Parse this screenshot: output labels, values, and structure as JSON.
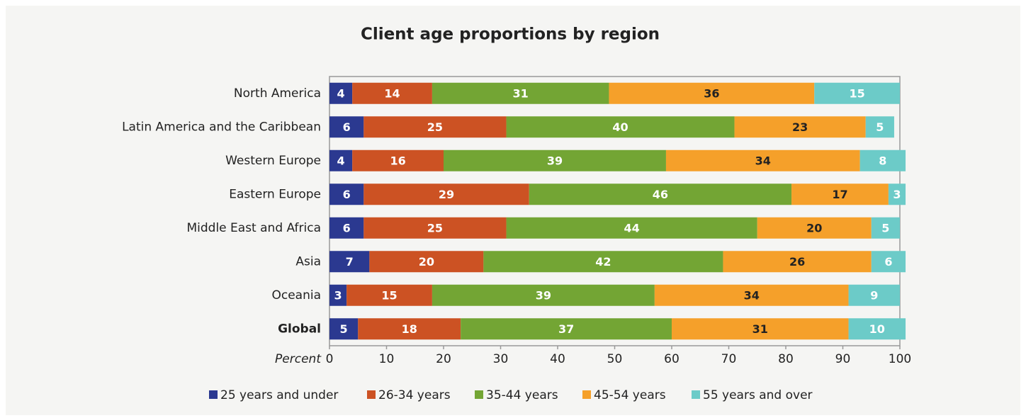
{
  "chart_data": {
    "type": "stacked_barh",
    "title": "Client age proportions by region",
    "xlabel": "Percent",
    "categories": [
      "North America",
      "Latin America and the Caribbean",
      "Western Europe",
      "Eastern Europe",
      "Middle East and Africa",
      "Asia",
      "Oceania",
      "Global"
    ],
    "series": [
      {
        "name": "25 years and under",
        "color": "#2b3990",
        "label_color": "#ffffff",
        "values": [
          4,
          6,
          4,
          6,
          6,
          7,
          3,
          5
        ]
      },
      {
        "name": "26-34 years",
        "color": "#cc5223",
        "label_color": "#ffffff",
        "values": [
          14,
          25,
          16,
          29,
          25,
          20,
          15,
          18
        ]
      },
      {
        "name": "35-44 years",
        "color": "#73a534",
        "label_color": "#ffffff",
        "values": [
          31,
          40,
          39,
          46,
          44,
          42,
          39,
          37
        ]
      },
      {
        "name": "45-54 years",
        "color": "#f5a02a",
        "label_color": "#222222",
        "values": [
          36,
          23,
          34,
          17,
          20,
          26,
          34,
          31
        ]
      },
      {
        "name": "55 years and over",
        "color": "#6ccbc8",
        "label_color": "#ffffff",
        "values": [
          15,
          5,
          8,
          3,
          5,
          6,
          9,
          10
        ]
      }
    ],
    "xlim": [
      0,
      100
    ],
    "xticks": [
      0,
      10,
      20,
      30,
      40,
      50,
      60,
      70,
      80,
      90,
      100
    ],
    "legend": "bottom"
  }
}
